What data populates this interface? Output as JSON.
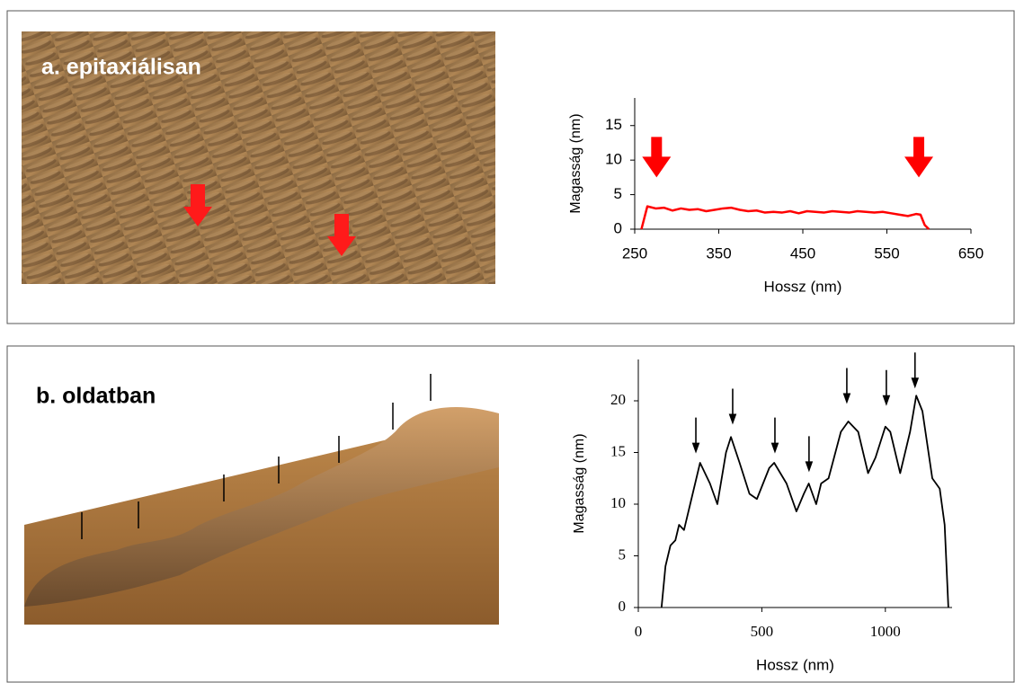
{
  "panel_labels": [
    "a. epitaxiálisan",
    "b. oldatban"
  ],
  "chart_data": [
    {
      "type": "line",
      "x_label": "Hossz (nm)",
      "y_label": "Magasság (nm)",
      "x": [
        258,
        265,
        275,
        285,
        295,
        305,
        315,
        325,
        335,
        345,
        355,
        365,
        375,
        385,
        395,
        405,
        415,
        425,
        435,
        445,
        455,
        465,
        475,
        485,
        495,
        505,
        515,
        525,
        535,
        545,
        555,
        565,
        575,
        585,
        590,
        595,
        600
      ],
      "series": [
        {
          "color": "#ff0000",
          "values": [
            0,
            3.3,
            3.0,
            3.1,
            2.7,
            3.0,
            2.8,
            2.9,
            2.6,
            2.8,
            3.0,
            3.1,
            2.8,
            2.6,
            2.7,
            2.4,
            2.5,
            2.4,
            2.6,
            2.3,
            2.6,
            2.5,
            2.4,
            2.6,
            2.5,
            2.4,
            2.6,
            2.5,
            2.4,
            2.5,
            2.3,
            2.1,
            1.9,
            2.2,
            2.1,
            0.6,
            0
          ]
        }
      ],
      "xlim": [
        250,
        650
      ],
      "xticks": [
        250,
        350,
        450,
        550,
        650
      ],
      "ylim": [
        0,
        19
      ],
      "yticks": [
        0,
        5,
        10,
        15
      ],
      "arrows": {
        "color": "#ff0000",
        "x": [
          276,
          588
        ],
        "y": [
          7.5,
          7.5
        ]
      }
    },
    {
      "type": "line",
      "x_label": "Hossz (nm)",
      "y_label": "Magasság (nm)",
      "x": [
        94,
        110,
        130,
        150,
        165,
        185,
        210,
        250,
        290,
        320,
        355,
        375,
        410,
        450,
        480,
        530,
        550,
        600,
        640,
        670,
        690,
        720,
        740,
        770,
        820,
        850,
        890,
        930,
        960,
        1000,
        1020,
        1060,
        1100,
        1125,
        1150,
        1190,
        1220,
        1240,
        1255
      ],
      "series": [
        {
          "color": "#000000",
          "values": [
            0,
            4,
            6,
            6.5,
            8,
            7.5,
            10,
            14,
            12,
            10,
            15,
            16.5,
            14,
            11,
            10.5,
            13.5,
            14,
            12,
            9.3,
            11,
            12,
            10,
            12,
            12.5,
            17,
            18,
            17,
            13,
            14.5,
            17.5,
            17,
            13,
            17,
            20.5,
            19,
            12.5,
            11.5,
            8,
            0
          ]
        }
      ],
      "xlim": [
        0,
        1270
      ],
      "xticks": [
        0,
        500,
        1000
      ],
      "ylim": [
        0,
        24
      ],
      "yticks": [
        0,
        5,
        10,
        15,
        20
      ],
      "arrows": {
        "color": "#000000",
        "x": [
          233,
          382,
          553,
          691,
          844,
          1004,
          1120
        ],
        "y": [
          14.9,
          17.7,
          14.9,
          13.1,
          19.7,
          19.5,
          21.2
        ]
      }
    }
  ]
}
